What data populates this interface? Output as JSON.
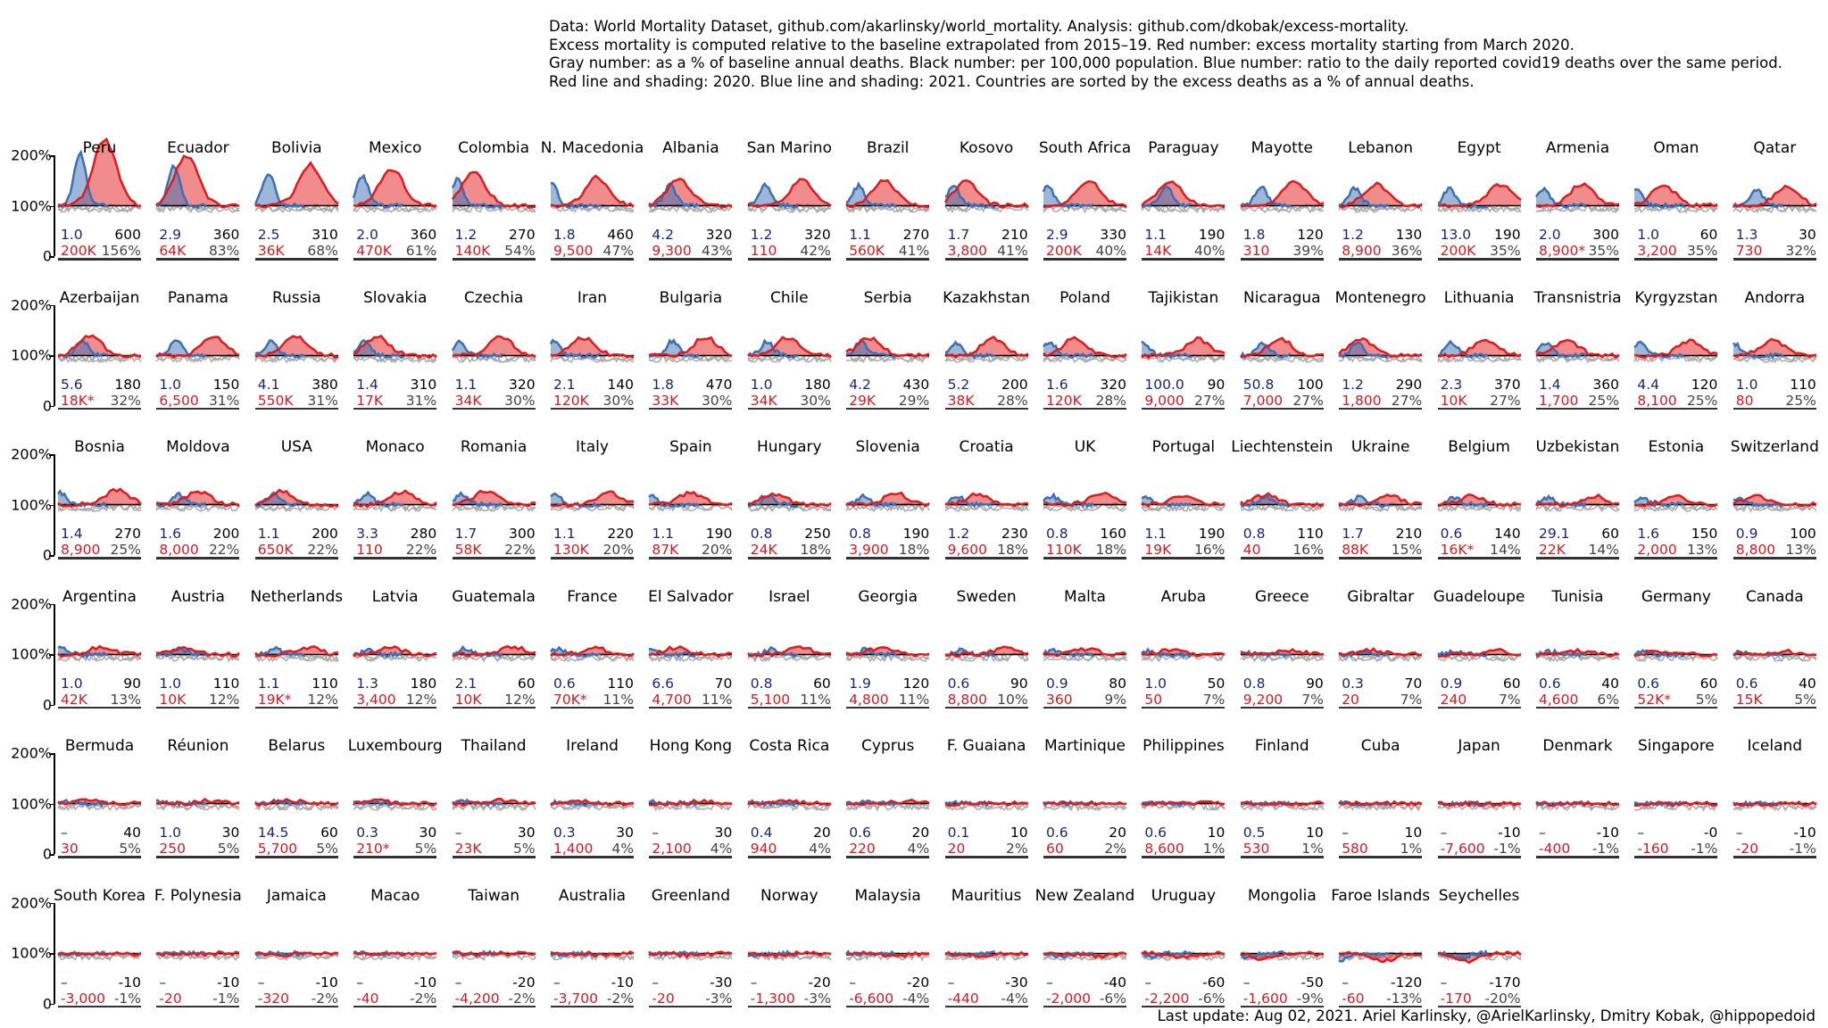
{
  "title_lines": [
    "Data: World Mortality Dataset, github.com/akarlinsky/world_mortality. Analysis: github.com/dkobak/excess-mortality.",
    "Excess mortality is computed relative to the baseline extrapolated from 2015–19. Red number: excess mortality starting from March 2020.",
    "Gray number: as a % of baseline annual deaths. Black number: per 100,000 population. Blue number: ratio to the daily reported covid19 deaths over the same period.",
    "Red line and shading: 2020. Blue line and shading: 2021. Countries are sorted by the excess deaths as a % of annual deaths."
  ],
  "footer": "Last update: Aug 02, 2021. Ariel Karlinsky, @ArielKarlinsky, Dmitry Kobak, @hippopedoid",
  "colors": {
    "red_2020": "#e31a1c",
    "blue_2021": "#3b6fb6",
    "baseline": "#000000",
    "past_years": "#aaaaaa"
  },
  "chart_data": {
    "type": "line",
    "layout": "small multiples grid, 18 columns",
    "y_ticks": [
      "200%",
      "100%",
      "0"
    ],
    "ylim": [
      0,
      200
    ],
    "fields": [
      "country",
      "ratio_to_covid_deaths (blue)",
      "per_100k (black)",
      "excess_deaths (red)",
      "pct_of_annual (gray)"
    ],
    "rows": [
      [
        [
          "Peru",
          "1.0",
          "600",
          "200K",
          "156%"
        ],
        [
          "Ecuador",
          "2.9",
          "360",
          "64K",
          "83%"
        ],
        [
          "Bolivia",
          "2.5",
          "310",
          "36K",
          "68%"
        ],
        [
          "Mexico",
          "2.0",
          "360",
          "470K",
          "61%"
        ],
        [
          "Colombia",
          "1.2",
          "270",
          "140K",
          "54%"
        ],
        [
          "N. Macedonia",
          "1.8",
          "460",
          "9,500",
          "47%"
        ],
        [
          "Albania",
          "4.2",
          "320",
          "9,300",
          "43%"
        ],
        [
          "San Marino",
          "1.2",
          "320",
          "110",
          "42%"
        ],
        [
          "Brazil",
          "1.1",
          "270",
          "560K",
          "41%"
        ],
        [
          "Kosovo",
          "1.7",
          "210",
          "3,800",
          "41%"
        ],
        [
          "South Africa",
          "2.9",
          "330",
          "200K",
          "40%"
        ],
        [
          "Paraguay",
          "1.1",
          "190",
          "14K",
          "40%"
        ],
        [
          "Mayotte",
          "1.8",
          "120",
          "310",
          "39%"
        ],
        [
          "Lebanon",
          "1.2",
          "130",
          "8,900",
          "36%"
        ],
        [
          "Egypt",
          "13.0",
          "190",
          "200K",
          "35%"
        ],
        [
          "Armenia",
          "2.0",
          "300",
          "8,900*",
          "35%"
        ],
        [
          "Oman",
          "1.0",
          "60",
          "3,200",
          "35%"
        ],
        [
          "Qatar",
          "1.3",
          "30",
          "730",
          "32%"
        ]
      ],
      [
        [
          "Azerbaijan",
          "5.6",
          "180",
          "18K*",
          "32%"
        ],
        [
          "Panama",
          "1.0",
          "150",
          "6,500",
          "31%"
        ],
        [
          "Russia",
          "4.1",
          "380",
          "550K",
          "31%"
        ],
        [
          "Slovakia",
          "1.4",
          "310",
          "17K",
          "31%"
        ],
        [
          "Czechia",
          "1.1",
          "320",
          "34K",
          "30%"
        ],
        [
          "Iran",
          "2.1",
          "140",
          "120K",
          "30%"
        ],
        [
          "Bulgaria",
          "1.8",
          "470",
          "33K",
          "30%"
        ],
        [
          "Chile",
          "1.0",
          "180",
          "34K",
          "30%"
        ],
        [
          "Serbia",
          "4.2",
          "430",
          "29K",
          "29%"
        ],
        [
          "Kazakhstan",
          "5.2",
          "200",
          "38K",
          "28%"
        ],
        [
          "Poland",
          "1.6",
          "320",
          "120K",
          "28%"
        ],
        [
          "Tajikistan",
          "100.0",
          "90",
          "9,000",
          "27%"
        ],
        [
          "Nicaragua",
          "50.8",
          "100",
          "7,000",
          "27%"
        ],
        [
          "Montenegro",
          "1.2",
          "290",
          "1,800",
          "27%"
        ],
        [
          "Lithuania",
          "2.3",
          "370",
          "10K",
          "27%"
        ],
        [
          "Transnistria",
          "1.4",
          "360",
          "1,700",
          "25%"
        ],
        [
          "Kyrgyzstan",
          "4.4",
          "120",
          "8,100",
          "25%"
        ],
        [
          "Andorra",
          "1.0",
          "110",
          "80",
          "25%"
        ]
      ],
      [
        [
          "Bosnia",
          "1.4",
          "270",
          "8,900",
          "25%"
        ],
        [
          "Moldova",
          "1.6",
          "200",
          "8,000",
          "22%"
        ],
        [
          "USA",
          "1.1",
          "200",
          "650K",
          "22%"
        ],
        [
          "Monaco",
          "3.3",
          "280",
          "110",
          "22%"
        ],
        [
          "Romania",
          "1.7",
          "300",
          "58K",
          "22%"
        ],
        [
          "Italy",
          "1.1",
          "220",
          "130K",
          "20%"
        ],
        [
          "Spain",
          "1.1",
          "190",
          "87K",
          "20%"
        ],
        [
          "Hungary",
          "0.8",
          "250",
          "24K",
          "18%"
        ],
        [
          "Slovenia",
          "0.8",
          "190",
          "3,900",
          "18%"
        ],
        [
          "Croatia",
          "1.2",
          "230",
          "9,600",
          "18%"
        ],
        [
          "UK",
          "0.8",
          "160",
          "110K",
          "18%"
        ],
        [
          "Portugal",
          "1.1",
          "190",
          "19K",
          "16%"
        ],
        [
          "Liechtenstein",
          "0.8",
          "110",
          "40",
          "16%"
        ],
        [
          "Ukraine",
          "1.7",
          "210",
          "88K",
          "15%"
        ],
        [
          "Belgium",
          "0.6",
          "140",
          "16K*",
          "14%"
        ],
        [
          "Uzbekistan",
          "29.1",
          "60",
          "22K",
          "14%"
        ],
        [
          "Estonia",
          "1.6",
          "150",
          "2,000",
          "13%"
        ],
        [
          "Switzerland",
          "0.9",
          "100",
          "8,800",
          "13%"
        ]
      ],
      [
        [
          "Argentina",
          "1.0",
          "90",
          "42K",
          "13%"
        ],
        [
          "Austria",
          "1.0",
          "110",
          "10K",
          "12%"
        ],
        [
          "Netherlands",
          "1.1",
          "110",
          "19K*",
          "12%"
        ],
        [
          "Latvia",
          "1.3",
          "180",
          "3,400",
          "12%"
        ],
        [
          "Guatemala",
          "2.1",
          "60",
          "10K",
          "12%"
        ],
        [
          "France",
          "0.6",
          "110",
          "70K*",
          "11%"
        ],
        [
          "El Salvador",
          "6.6",
          "70",
          "4,700",
          "11%"
        ],
        [
          "Israel",
          "0.8",
          "60",
          "5,100",
          "11%"
        ],
        [
          "Georgia",
          "1.9",
          "120",
          "4,800",
          "11%"
        ],
        [
          "Sweden",
          "0.6",
          "90",
          "8,800",
          "10%"
        ],
        [
          "Malta",
          "0.9",
          "80",
          "360",
          "9%"
        ],
        [
          "Aruba",
          "1.0",
          "50",
          "50",
          "7%"
        ],
        [
          "Greece",
          "0.8",
          "90",
          "9,200",
          "7%"
        ],
        [
          "Gibraltar",
          "0.3",
          "70",
          "20",
          "7%"
        ],
        [
          "Guadeloupe",
          "0.9",
          "60",
          "240",
          "7%"
        ],
        [
          "Tunisia",
          "0.6",
          "40",
          "4,600",
          "6%"
        ],
        [
          "Germany",
          "0.6",
          "60",
          "52K*",
          "5%"
        ],
        [
          "Canada",
          "0.6",
          "40",
          "15K",
          "5%"
        ]
      ],
      [
        [
          "Bermuda",
          "–",
          "40",
          "30",
          "5%"
        ],
        [
          "Réunion",
          "1.0",
          "30",
          "250",
          "5%"
        ],
        [
          "Belarus",
          "14.5",
          "60",
          "5,700",
          "5%"
        ],
        [
          "Luxembourg",
          "0.3",
          "30",
          "210*",
          "5%"
        ],
        [
          "Thailand",
          "–",
          "30",
          "23K",
          "5%"
        ],
        [
          "Ireland",
          "0.3",
          "30",
          "1,400",
          "4%"
        ],
        [
          "Hong Kong",
          "–",
          "30",
          "2,100",
          "4%"
        ],
        [
          "Costa Rica",
          "0.4",
          "20",
          "940",
          "4%"
        ],
        [
          "Cyprus",
          "0.6",
          "20",
          "220",
          "4%"
        ],
        [
          "F. Guaiana",
          "0.1",
          "10",
          "20",
          "2%"
        ],
        [
          "Martinique",
          "0.6",
          "20",
          "60",
          "2%"
        ],
        [
          "Philippines",
          "0.6",
          "10",
          "8,600",
          "1%"
        ],
        [
          "Finland",
          "0.5",
          "10",
          "530",
          "1%"
        ],
        [
          "Cuba",
          "–",
          "10",
          "580",
          "1%"
        ],
        [
          "Japan",
          "–",
          "-10",
          "-7,600",
          "-1%"
        ],
        [
          "Denmark",
          "–",
          "-10",
          "-400",
          "-1%"
        ],
        [
          "Singapore",
          "–",
          "-0",
          "-160",
          "-1%"
        ],
        [
          "Iceland",
          "–",
          "-10",
          "-20",
          "-1%"
        ]
      ],
      [
        [
          "South Korea",
          "–",
          "-10",
          "-3,000",
          "-1%"
        ],
        [
          "F. Polynesia",
          "–",
          "-10",
          "-20",
          "-1%"
        ],
        [
          "Jamaica",
          "–",
          "-10",
          "-320",
          "-2%"
        ],
        [
          "Macao",
          "–",
          "-10",
          "-40",
          "-2%"
        ],
        [
          "Taiwan",
          "–",
          "-20",
          "-4,200",
          "-2%"
        ],
        [
          "Australia",
          "–",
          "-10",
          "-3,700",
          "-2%"
        ],
        [
          "Greenland",
          "–",
          "-30",
          "-20",
          "-3%"
        ],
        [
          "Norway",
          "–",
          "-20",
          "-1,300",
          "-3%"
        ],
        [
          "Malaysia",
          "–",
          "-20",
          "-6,600",
          "-4%"
        ],
        [
          "Mauritius",
          "–",
          "-30",
          "-440",
          "-4%"
        ],
        [
          "New Zealand",
          "–",
          "-40",
          "-2,000",
          "-6%"
        ],
        [
          "Uruguay",
          "–",
          "-60",
          "-2,200",
          "-6%"
        ],
        [
          "Mongolia",
          "–",
          "-50",
          "-1,600",
          "-9%"
        ],
        [
          "Faroe Islands",
          "–",
          "-120",
          "-60",
          "-13%"
        ],
        [
          "Seychelles",
          "–",
          "-170",
          "-170",
          "-20%"
        ]
      ]
    ]
  }
}
